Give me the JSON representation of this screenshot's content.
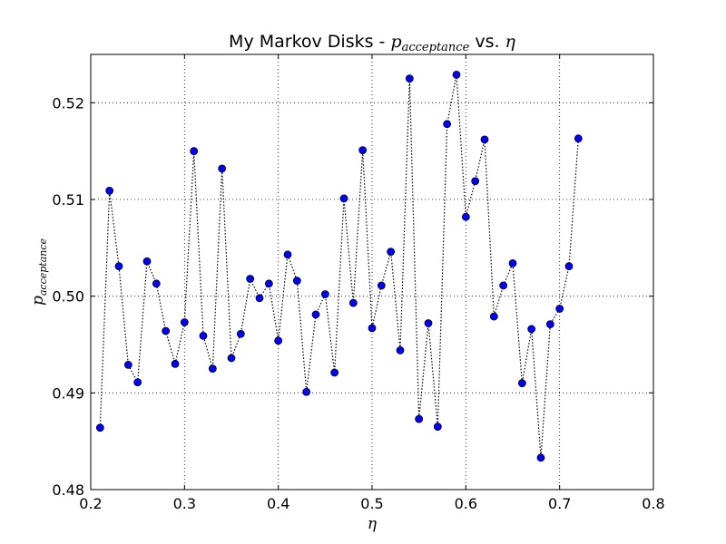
{
  "chart_data": {
    "type": "scatter",
    "title_prefix": "My Markov Disks - ",
    "title_math_var": "p",
    "title_math_sub": "acceptance",
    "title_mid": " vs. ",
    "title_math_x": "η",
    "xlabel": "η",
    "ylabel_var": "p",
    "ylabel_sub": "acceptance",
    "xlim": [
      0.2,
      0.8
    ],
    "ylim": [
      0.48,
      0.525
    ],
    "xticks": [
      0.2,
      0.3,
      0.4,
      0.5,
      0.6,
      0.7,
      0.8
    ],
    "xtick_labels": [
      "0.2",
      "0.3",
      "0.4",
      "0.5",
      "0.6",
      "0.7",
      "0.8"
    ],
    "yticks": [
      0.48,
      0.49,
      0.5,
      0.51,
      0.52
    ],
    "ytick_labels": [
      "0.48",
      "0.49",
      "0.50",
      "0.51",
      "0.52"
    ],
    "grid": true,
    "line_style": "dotted",
    "marker_color": "#0000ff",
    "series": [
      {
        "x": [
          0.21,
          0.22,
          0.23,
          0.24,
          0.25,
          0.26,
          0.27,
          0.28,
          0.29,
          0.3,
          0.31,
          0.32,
          0.33,
          0.34,
          0.35,
          0.36,
          0.37,
          0.38,
          0.39,
          0.4,
          0.41,
          0.42,
          0.43,
          0.44,
          0.45,
          0.46,
          0.47,
          0.48,
          0.49,
          0.5,
          0.51,
          0.52,
          0.53,
          0.54,
          0.55,
          0.56,
          0.57,
          0.58,
          0.59,
          0.6,
          0.61,
          0.62,
          0.63,
          0.64,
          0.65,
          0.66,
          0.67,
          0.68,
          0.69,
          0.7,
          0.71,
          0.72
        ],
        "y": [
          0.4864,
          0.5109,
          0.5031,
          0.4929,
          0.4911,
          0.5036,
          0.5013,
          0.4964,
          0.493,
          0.4973,
          0.515,
          0.4959,
          0.4925,
          0.5132,
          0.4936,
          0.4961,
          0.5018,
          0.4998,
          0.5013,
          0.4954,
          0.5043,
          0.5016,
          0.4901,
          0.4981,
          0.5002,
          0.4921,
          0.5101,
          0.4993,
          0.5151,
          0.4967,
          0.5011,
          0.5046,
          0.4944,
          0.5225,
          0.4873,
          0.4972,
          0.4865,
          0.5178,
          0.5229,
          0.5082,
          0.5119,
          0.5162,
          0.4979,
          0.5011,
          0.5034,
          0.491,
          0.4966,
          0.4833,
          0.4971,
          0.4987,
          0.5031,
          0.5163
        ]
      }
    ]
  }
}
